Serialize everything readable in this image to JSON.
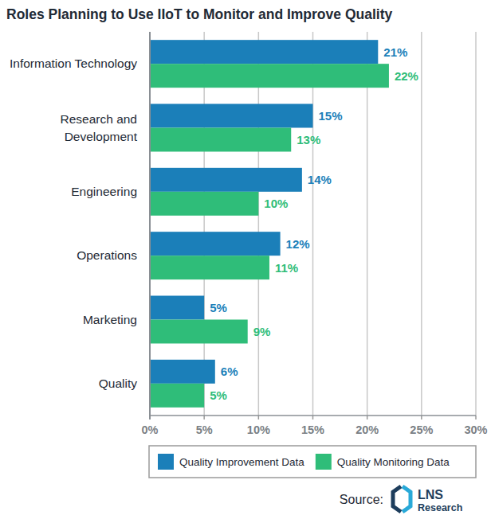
{
  "chart_data": {
    "type": "bar",
    "orientation": "horizontal",
    "title": "Roles Planning to Use IIoT to Monitor and Improve Quality",
    "categories": [
      "Information Technology",
      "Research and Development",
      "Engineering",
      "Operations",
      "Marketing",
      "Quality"
    ],
    "series": [
      {
        "name": "Quality Improvement Data",
        "color": "#1b7fb9",
        "values": [
          21,
          15,
          14,
          12,
          5,
          6
        ],
        "value_labels": [
          "21%",
          "15%",
          "14%",
          "12%",
          "5%",
          "6%"
        ]
      },
      {
        "name": "Quality Monitoring Data",
        "color": "#2fbd79",
        "values": [
          22,
          13,
          10,
          11,
          9,
          5
        ],
        "value_labels": [
          "22%",
          "13%",
          "10%",
          "11%",
          "9%",
          "5%"
        ]
      }
    ],
    "xlim": [
      0,
      30
    ],
    "xticks": [
      {
        "value": 0,
        "label": "0%"
      },
      {
        "value": 5,
        "label": "5%"
      },
      {
        "value": 10,
        "label": "10%"
      },
      {
        "value": 15,
        "label": "15%"
      },
      {
        "value": 20,
        "label": "20%"
      },
      {
        "value": 25,
        "label": "25%"
      },
      {
        "value": 30,
        "label": "30%"
      }
    ],
    "grid": true,
    "data_labels": true,
    "legend": "bottom",
    "source": {
      "label": "Source:",
      "logo_lines": [
        "LNS",
        "Research"
      ]
    }
  }
}
